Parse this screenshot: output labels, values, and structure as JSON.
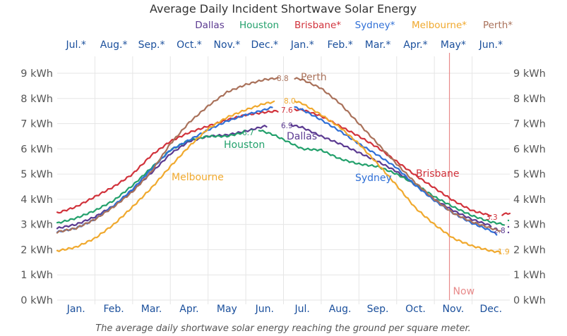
{
  "chart_data": {
    "type": "line",
    "title": "Average Daily Incident Shortwave Solar Energy",
    "caption": "The average daily shortwave solar energy reaching the ground per square meter.",
    "xlabel": "",
    "ylabel": "",
    "ylim": [
      0,
      9
    ],
    "y_ticks": [
      "0 kWh",
      "1 kWh",
      "2 kWh",
      "3 kWh",
      "4 kWh",
      "5 kWh",
      "6 kWh",
      "7 kWh",
      "8 kWh",
      "9 kWh"
    ],
    "y_tick_values": [
      0,
      1,
      2,
      3,
      4,
      5,
      6,
      7,
      8,
      9
    ],
    "x_ticks_bottom": [
      "Jan.",
      "Feb.",
      "Mar.",
      "Apr.",
      "May",
      "Jun.",
      "Jul.",
      "Aug.",
      "Sep.",
      "Oct.",
      "Nov.",
      "Dec."
    ],
    "x_ticks_top": [
      "Jul.*",
      "Aug.*",
      "Sep.*",
      "Oct.*",
      "Nov.*",
      "Dec.*",
      "Jan.*",
      "Feb.*",
      "Mar.*",
      "Apr.*",
      "May*",
      "Jun.*"
    ],
    "x_unit": "month (0 = Jan 1, 12 = Dec 31)",
    "grid": true,
    "legend_position": "top",
    "marker": {
      "label": "Now",
      "x": 10.4,
      "color": "#e88a8a"
    },
    "series": [
      {
        "name": "Dallas",
        "legend": "Dallas",
        "color": "#5b3a91",
        "x": [
          0,
          0.5,
          1,
          1.5,
          2,
          2.5,
          3,
          3.5,
          4,
          4.5,
          5.0,
          5.5,
          6.2,
          6.5,
          7,
          7.5,
          8,
          8.5,
          9,
          9.5,
          10,
          10.5,
          11,
          11.5,
          11.75
        ],
        "values": [
          2.85,
          3.0,
          3.3,
          3.75,
          4.35,
          5.05,
          5.8,
          6.3,
          6.5,
          6.55,
          6.7,
          6.9,
          6.95,
          6.85,
          6.5,
          6.2,
          5.85,
          5.5,
          5.1,
          4.55,
          4.0,
          3.55,
          3.2,
          2.95,
          2.85
        ],
        "peak_label": "6.9",
        "end_label": "2.8",
        "inline_label": "Dallas"
      },
      {
        "name": "Houston",
        "legend": "Houston",
        "color": "#22a06b",
        "x": [
          0,
          0.5,
          1,
          1.5,
          2,
          2.5,
          3,
          3.5,
          4,
          4.5,
          4.95,
          5.35,
          5.75,
          6.5,
          7,
          7.5,
          8,
          8.5,
          9,
          9.5,
          10,
          10.5,
          11,
          11.5,
          11.85
        ],
        "values": [
          3.05,
          3.25,
          3.55,
          3.95,
          4.55,
          5.25,
          5.95,
          6.35,
          6.5,
          6.5,
          6.65,
          6.75,
          6.55,
          6.0,
          5.95,
          5.6,
          5.4,
          5.3,
          5.0,
          4.6,
          4.1,
          3.7,
          3.35,
          3.1,
          3.0
        ],
        "peak_label": "6.7",
        "inline_label": "Houston"
      },
      {
        "name": "Brisbane",
        "legend": "Brisbane*",
        "color": "#d1323b",
        "x": [
          0,
          0.5,
          1,
          1.5,
          2,
          2.5,
          3,
          3.5,
          4,
          4.5,
          5,
          5.5,
          5.8,
          6.3,
          6.5,
          7,
          7.5,
          8,
          8.5,
          9,
          9.5,
          10,
          10.5,
          11,
          11.5,
          11.65,
          11.8,
          12
        ],
        "values": [
          3.45,
          3.7,
          4.1,
          4.5,
          5.0,
          5.75,
          6.3,
          6.65,
          6.9,
          7.15,
          7.35,
          7.45,
          7.5,
          7.55,
          7.55,
          7.3,
          6.9,
          6.5,
          6.05,
          5.5,
          4.95,
          4.45,
          3.95,
          3.55,
          3.35,
          3.3,
          3.4,
          3.45
        ],
        "peak_label": "7.6",
        "end_label": "3.3",
        "inline_label": "Brisbane"
      },
      {
        "name": "Sydney",
        "legend": "Sydney*",
        "color": "#2f6fd6",
        "x": [
          0,
          0.5,
          1,
          1.5,
          2,
          2.5,
          3,
          3.5,
          4,
          4.5,
          5,
          5.5,
          5.7,
          6.3,
          6.5,
          7,
          7.5,
          8,
          8.5,
          9,
          9.5,
          10,
          10.5,
          11,
          11.5,
          11.65
        ],
        "values": [
          2.7,
          2.85,
          3.2,
          3.75,
          4.4,
          5.2,
          5.95,
          6.35,
          6.75,
          7.1,
          7.35,
          7.55,
          7.65,
          7.65,
          7.55,
          7.15,
          6.7,
          6.2,
          5.75,
          5.25,
          4.55,
          3.95,
          3.45,
          3.05,
          2.75,
          2.6
        ],
        "inline_label": "Sydney"
      },
      {
        "name": "Melbourne",
        "legend": "Melbourne*",
        "color": "#f0a92e",
        "x": [
          0,
          0.5,
          1,
          1.5,
          2,
          2.5,
          3,
          3.5,
          4,
          4.5,
          5,
          5.5,
          5.7,
          6.3,
          6.5,
          7,
          7.5,
          8,
          8.5,
          9,
          9.5,
          10,
          10.5,
          11,
          11.5,
          11.75
        ],
        "values": [
          1.95,
          2.1,
          2.45,
          3.0,
          3.7,
          4.45,
          5.3,
          6.1,
          6.8,
          7.25,
          7.55,
          7.8,
          7.85,
          7.9,
          7.8,
          7.35,
          6.85,
          6.2,
          5.4,
          4.55,
          3.65,
          3.0,
          2.45,
          2.15,
          1.95,
          1.9
        ],
        "peak_label": "8.0",
        "end_label": "1.9",
        "inline_label": "Melbourne"
      },
      {
        "name": "Perth",
        "legend": "Perth*",
        "color": "#a9715a",
        "x": [
          0,
          0.5,
          1,
          1.5,
          2,
          2.5,
          3,
          3.5,
          4,
          4.5,
          5,
          5.5,
          5.8,
          6.3,
          6.5,
          7,
          7.5,
          8,
          8.5,
          9,
          9.5,
          10,
          10.5,
          11,
          11.5,
          11.75
        ],
        "values": [
          2.7,
          2.85,
          3.2,
          3.7,
          4.3,
          5.1,
          6.2,
          7.05,
          7.7,
          8.25,
          8.55,
          8.75,
          8.8,
          8.8,
          8.75,
          8.4,
          7.8,
          7.0,
          6.2,
          5.4,
          4.65,
          4.0,
          3.45,
          3.1,
          2.85,
          2.75
        ],
        "peak_label": "8.8",
        "inline_label": "Perth"
      }
    ]
  }
}
